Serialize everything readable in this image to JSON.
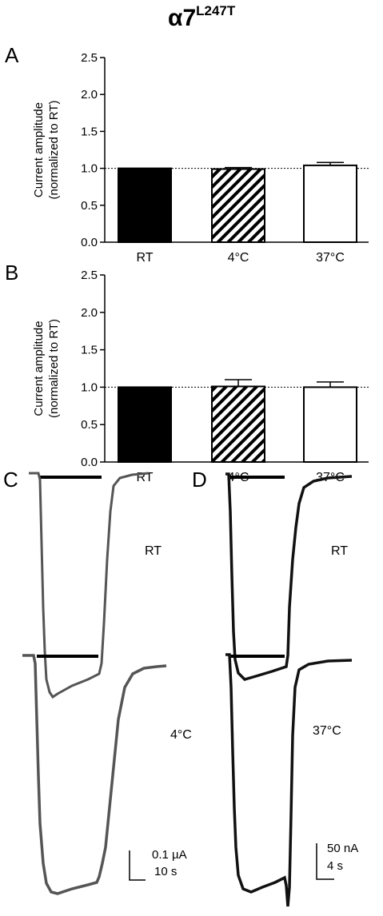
{
  "figure": {
    "title_main": "α7",
    "title_sup": "L247T",
    "panel_letters": [
      "A",
      "B",
      "C",
      "D"
    ]
  },
  "chart_data": [
    {
      "panel": "A",
      "type": "bar",
      "categories": [
        "RT",
        "4°C",
        "37°C"
      ],
      "values": [
        1.0,
        0.99,
        1.04
      ],
      "errors": [
        0.0,
        0.02,
        0.04
      ],
      "bar_fills": [
        "solid-black",
        "diagonal-hatch",
        "white"
      ],
      "ylabel": "Current amplitude (normalized to RT)",
      "ylabel_lines": [
        "Current amplitude",
        "(normalized to RT)"
      ],
      "yticks": [
        "0.0",
        "0.5",
        "1.0",
        "1.5",
        "2.0",
        "2.5"
      ],
      "ylim": [
        0,
        2.5
      ],
      "reference_line": 1.0
    },
    {
      "panel": "B",
      "type": "bar",
      "categories": [
        "RT",
        "4°C",
        "37°C"
      ],
      "values": [
        1.0,
        1.01,
        1.0
      ],
      "errors": [
        0.0,
        0.09,
        0.07
      ],
      "bar_fills": [
        "solid-black",
        "diagonal-hatch",
        "white"
      ],
      "ylabel": "Current amplitude (normalized to RT)",
      "ylabel_lines": [
        "Current amplitude",
        "(normalized to RT)"
      ],
      "yticks": [
        "0.0",
        "0.5",
        "1.0",
        "1.5",
        "2.0",
        "2.5"
      ],
      "ylim": [
        0,
        2.5
      ],
      "reference_line": 1.0
    }
  ],
  "traces": {
    "C": {
      "top_label": "RT",
      "bottom_label": "4°C",
      "scale_y": "0.1 µA",
      "scale_x": "10 s",
      "trace_color": "#555555"
    },
    "D": {
      "top_label": "RT",
      "bottom_label": "37°C",
      "scale_y": "50 nA",
      "scale_x": "4 s",
      "trace_color": "#111111"
    }
  }
}
